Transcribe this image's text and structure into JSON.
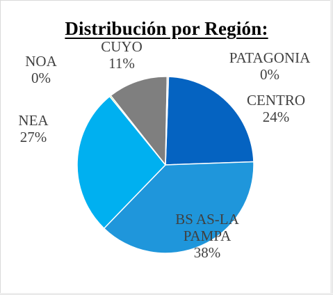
{
  "chart_data": {
    "type": "pie",
    "title": "Distribución por Región:",
    "slices": [
      {
        "label": "CENTRO",
        "label_lines": [
          "CENTRO"
        ],
        "value": 24,
        "value_text": "24%",
        "color": "#0563C1"
      },
      {
        "label": "BS AS-LA PAMPA",
        "label_lines": [
          "BS AS-LA",
          "PAMPA"
        ],
        "value": 38,
        "value_text": "38%",
        "color": "#1F96DB"
      },
      {
        "label": "NEA",
        "label_lines": [
          "NEA"
        ],
        "value": 27,
        "value_text": "27%",
        "color": "#00B0F0"
      },
      {
        "label": "NOA",
        "label_lines": [
          "NOA"
        ],
        "value": 0,
        "value_text": "0%",
        "color": "#92D050"
      },
      {
        "label": "CUYO",
        "label_lines": [
          "CUYO"
        ],
        "value": 11,
        "value_text": "11%",
        "color": "#7F7F7F"
      },
      {
        "label": "PATAGONIA",
        "label_lines": [
          "PATAGONIA"
        ],
        "value": 0,
        "value_text": "0%",
        "color": "#A6A6A6"
      }
    ]
  }
}
